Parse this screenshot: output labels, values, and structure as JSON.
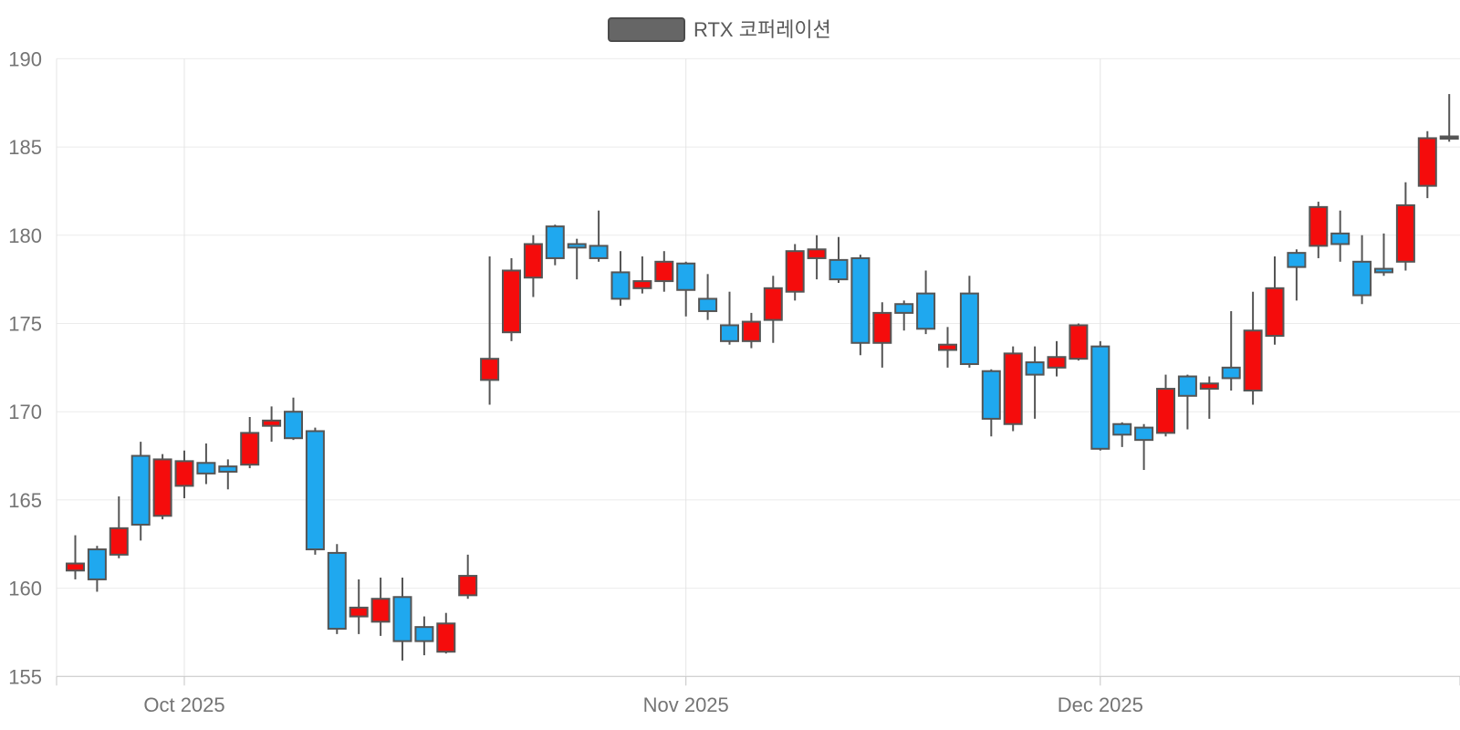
{
  "legend": {
    "label": "RTX 코퍼레이션"
  },
  "colors": {
    "up": "#f50c0c",
    "down": "#1fa8ef",
    "doji": "#555555",
    "candle_border": "#555555",
    "grid_line": "#ebebeb",
    "month_line": "#e4e4e4",
    "axis_line": "#c4c4c4",
    "tick_mark": "#c4c4c4",
    "axis_text": "#747474",
    "legend_text": "#595959",
    "legend_swatch_fill": "#666666",
    "legend_swatch_border": "#4c4c4c",
    "background": "#ffffff"
  },
  "chart_data": {
    "type": "candlestick",
    "title": "RTX 코퍼레이션",
    "legend_position": "top-center",
    "grid": true,
    "ylim": [
      155,
      190
    ],
    "y_ticks": [
      155,
      160,
      165,
      170,
      175,
      180,
      185,
      190
    ],
    "x_tick_labels": [
      "Oct 2025",
      "Nov 2025",
      "Dec 2025"
    ],
    "x_tick_indices": [
      5,
      28,
      47
    ],
    "up_means": "close >= open (red, Korean convention)",
    "dates": [
      "2025-09-24",
      "2025-09-25",
      "2025-09-26",
      "2025-09-29",
      "2025-09-30",
      "2025-10-01",
      "2025-10-02",
      "2025-10-03",
      "2025-10-06",
      "2025-10-07",
      "2025-10-08",
      "2025-10-09",
      "2025-10-10",
      "2025-10-13",
      "2025-10-14",
      "2025-10-15",
      "2025-10-16",
      "2025-10-17",
      "2025-10-20",
      "2025-10-21",
      "2025-10-22",
      "2025-10-23",
      "2025-10-24",
      "2025-10-27",
      "2025-10-28",
      "2025-10-29",
      "2025-10-30",
      "2025-10-31",
      "2025-11-03",
      "2025-11-04",
      "2025-11-05",
      "2025-11-06",
      "2025-11-07",
      "2025-11-10",
      "2025-11-11",
      "2025-11-12",
      "2025-11-13",
      "2025-11-14",
      "2025-11-17",
      "2025-11-18",
      "2025-11-19",
      "2025-11-20",
      "2025-11-21",
      "2025-11-24",
      "2025-11-25",
      "2025-11-26",
      "2025-11-28",
      "2025-12-01",
      "2025-12-02",
      "2025-12-03",
      "2025-12-04",
      "2025-12-05",
      "2025-12-08",
      "2025-12-09",
      "2025-12-10",
      "2025-12-11",
      "2025-12-12",
      "2025-12-15",
      "2025-12-16",
      "2025-12-17",
      "2025-12-18",
      "2025-12-19",
      "2025-12-22",
      "2025-12-23"
    ],
    "ohlc": [
      [
        161.0,
        163.0,
        160.5,
        161.4
      ],
      [
        162.2,
        162.4,
        159.8,
        160.5
      ],
      [
        161.9,
        165.2,
        161.7,
        163.4
      ],
      [
        167.5,
        168.3,
        162.7,
        163.6
      ],
      [
        164.1,
        167.6,
        163.9,
        167.3
      ],
      [
        165.8,
        167.8,
        165.1,
        167.2
      ],
      [
        167.1,
        168.2,
        165.9,
        166.5
      ],
      [
        166.9,
        167.3,
        165.6,
        166.6
      ],
      [
        167.0,
        169.7,
        166.8,
        168.8
      ],
      [
        169.2,
        170.3,
        168.3,
        169.5
      ],
      [
        170.0,
        170.8,
        168.4,
        168.5
      ],
      [
        168.9,
        169.1,
        161.9,
        162.2
      ],
      [
        162.0,
        162.5,
        157.4,
        157.7
      ],
      [
        158.4,
        160.5,
        157.4,
        158.9
      ],
      [
        158.1,
        160.6,
        157.3,
        159.4
      ],
      [
        159.5,
        160.6,
        155.9,
        157.0
      ],
      [
        157.8,
        158.4,
        156.2,
        157.0
      ],
      [
        156.4,
        158.6,
        156.3,
        158.0
      ],
      [
        159.6,
        161.9,
        159.4,
        160.7
      ],
      [
        171.8,
        178.8,
        170.4,
        173.0
      ],
      [
        174.5,
        178.7,
        174.0,
        178.0
      ],
      [
        177.6,
        180.0,
        176.5,
        179.5
      ],
      [
        180.5,
        180.6,
        178.3,
        178.7
      ],
      [
        179.5,
        179.8,
        177.5,
        179.3
      ],
      [
        179.4,
        181.4,
        178.5,
        178.7
      ],
      [
        177.9,
        179.1,
        176.0,
        176.4
      ],
      [
        177.0,
        178.8,
        176.7,
        177.4
      ],
      [
        177.4,
        179.1,
        176.8,
        178.5
      ],
      [
        178.4,
        178.5,
        175.4,
        176.9
      ],
      [
        176.4,
        177.8,
        175.2,
        175.7
      ],
      [
        174.9,
        176.8,
        173.8,
        174.0
      ],
      [
        174.0,
        175.6,
        173.6,
        175.1
      ],
      [
        175.2,
        177.7,
        173.9,
        177.0
      ],
      [
        176.8,
        179.5,
        176.3,
        179.1
      ],
      [
        178.7,
        180.0,
        177.5,
        179.2
      ],
      [
        178.6,
        179.9,
        177.3,
        177.5
      ],
      [
        178.7,
        178.9,
        173.2,
        173.9
      ],
      [
        173.9,
        176.2,
        172.5,
        175.6
      ],
      [
        176.1,
        176.3,
        174.6,
        175.6
      ],
      [
        176.7,
        178.0,
        174.4,
        174.7
      ],
      [
        173.5,
        174.8,
        172.5,
        173.8
      ],
      [
        176.7,
        177.7,
        172.5,
        172.7
      ],
      [
        172.3,
        172.4,
        168.6,
        169.6
      ],
      [
        169.3,
        173.7,
        168.9,
        173.3
      ],
      [
        172.8,
        173.7,
        169.6,
        172.1
      ],
      [
        172.5,
        174.0,
        172.0,
        173.1
      ],
      [
        173.0,
        175.0,
        172.9,
        174.9
      ],
      [
        173.7,
        174.0,
        167.8,
        167.9
      ],
      [
        169.3,
        169.4,
        168.0,
        168.7
      ],
      [
        169.1,
        169.3,
        166.7,
        168.4
      ],
      [
        168.8,
        172.1,
        168.6,
        171.3
      ],
      [
        172.0,
        172.1,
        169.0,
        170.9
      ],
      [
        171.3,
        172.0,
        169.6,
        171.6
      ],
      [
        172.5,
        175.7,
        171.2,
        171.9
      ],
      [
        171.2,
        176.8,
        170.4,
        174.6
      ],
      [
        174.3,
        178.8,
        173.8,
        177.0
      ],
      [
        179.0,
        179.2,
        176.3,
        178.2
      ],
      [
        179.4,
        181.9,
        178.7,
        181.6
      ],
      [
        180.1,
        181.4,
        178.5,
        179.5
      ],
      [
        178.5,
        180.0,
        176.1,
        176.6
      ],
      [
        178.1,
        180.1,
        177.7,
        177.9
      ],
      [
        178.5,
        183.0,
        178.0,
        181.7
      ],
      [
        182.8,
        185.9,
        182.1,
        185.5
      ],
      [
        185.6,
        188.0,
        185.3,
        185.6
      ]
    ]
  }
}
